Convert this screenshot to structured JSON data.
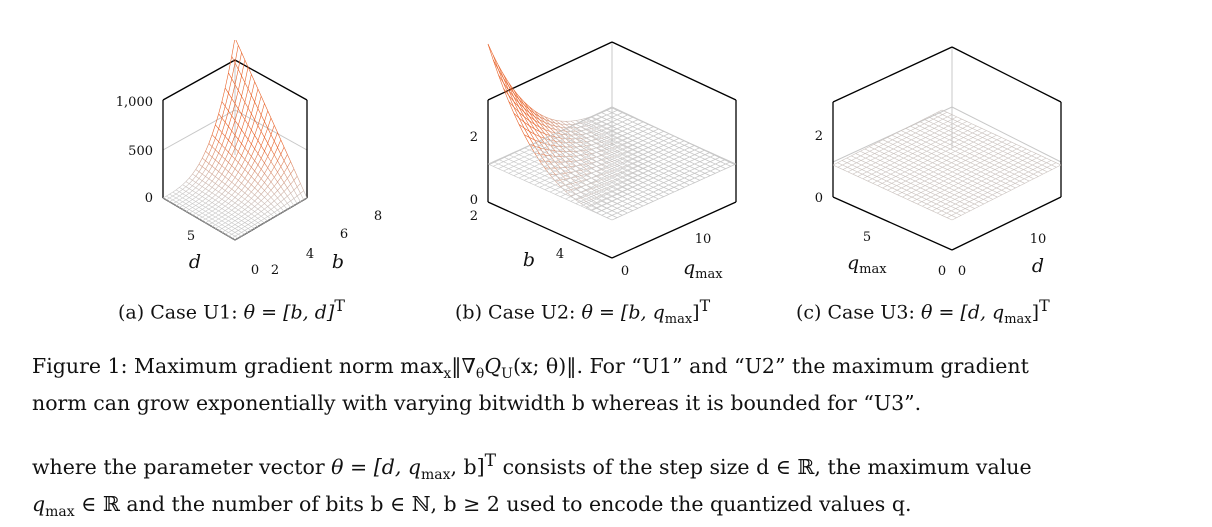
{
  "figure": {
    "subplots": [
      {
        "id": "a",
        "axis_labels": {
          "x": "d",
          "y": "b",
          "z": ""
        },
        "x_ticks": [
          "5",
          "0"
        ],
        "y_ticks": [
          "2",
          "4",
          "6",
          "8"
        ],
        "z_ticks": [
          "1,000",
          "500",
          "0"
        ],
        "caption_prefix": "(a) Case U1:",
        "caption_math": "θ = [b, d]",
        "caption_sup": "T"
      },
      {
        "id": "b",
        "axis_labels": {
          "x": "b",
          "y": "q",
          "y_sub": "max",
          "z": ""
        },
        "x_ticks": [
          "2",
          "4"
        ],
        "y_ticks": [
          "0",
          "10"
        ],
        "z_ticks": [
          "2",
          "0"
        ],
        "caption_prefix": "(b) Case U2:",
        "caption_math": "θ = [b, q",
        "caption_math_sub": "max",
        "caption_math_end": "]",
        "caption_sup": "T"
      },
      {
        "id": "c",
        "axis_labels": {
          "x": "q",
          "x_sub": "max",
          "y": "d",
          "z": ""
        },
        "x_ticks": [
          "5",
          "0"
        ],
        "y_ticks": [
          "0",
          "10"
        ],
        "z_ticks": [
          "2",
          "0"
        ],
        "caption_prefix": "(c) Case U3:",
        "caption_math": "θ = [d, q",
        "caption_math_sub": "max",
        "caption_math_end": "]",
        "caption_sup": "T"
      }
    ],
    "caption_line1_a": "Figure 1: Maximum gradient norm max",
    "caption_line1_sub": "x",
    "caption_line1_b": "‖∇",
    "caption_line1_c": "θ",
    "caption_line1_d": "Q",
    "caption_line1_e": "U",
    "caption_line1_f": "(x; θ)‖. For “U1” and “U2” the maximum gradient",
    "caption_line2": "norm can grow exponentially with varying bitwidth b whereas it is bounded for “U3”."
  },
  "body": {
    "line1_a": "where the parameter vector ",
    "line1_math": "θ = [d, q",
    "line1_sub": "max",
    "line1_math_end": ", b]",
    "line1_sup": "T",
    "line1_b": " consists of the step size d ∈ ℝ, the maximum value",
    "line2": "q",
    "line2_sub": "max",
    "line2_b": " ∈ ℝ and the number of bits b ∈ ℕ, b ≥ 2 used to encode the quantized values q."
  },
  "colors": {
    "surface_high": "#e8632a",
    "surface_low": "#c8c8c8",
    "axis": "#000000",
    "grid": "#c8c8c8"
  }
}
